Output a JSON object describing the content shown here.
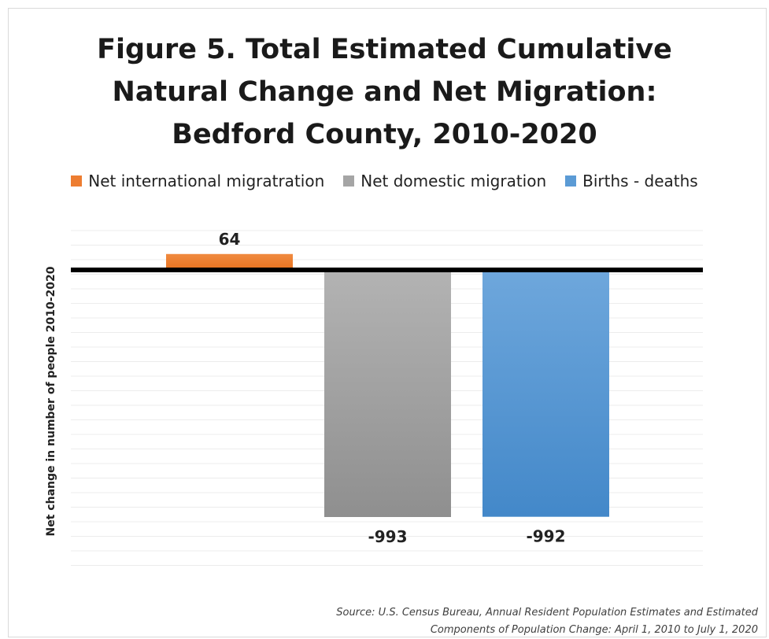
{
  "chart_data": {
    "type": "bar",
    "title_lines": [
      "Figure 5. Total Estimated Cumulative",
      "Natural Change and Net Migration:",
      "Bedford County, 2010-2020"
    ],
    "ylabel": "Net change in number of people 2010-2020",
    "series": [
      {
        "name": "Net international migratration",
        "value": 64,
        "label": "64",
        "color": "#ed7d31"
      },
      {
        "name": "Net domestic migration",
        "value": -993,
        "label": "-993",
        "color": "#a5a5a5"
      },
      {
        "name": "Births  - deaths",
        "value": -992,
        "label": "-992",
        "color": "#5b9bd5"
      }
    ],
    "ylim": [
      -1200,
      200
    ],
    "grid": true,
    "legend_position": "top"
  },
  "source": {
    "line1": "Source: U.S. Census Bureau, Annual Resident Population Estimates and Estimated",
    "line2": "Components of Population Change: April 1, 2010 to July 1, 2020"
  }
}
